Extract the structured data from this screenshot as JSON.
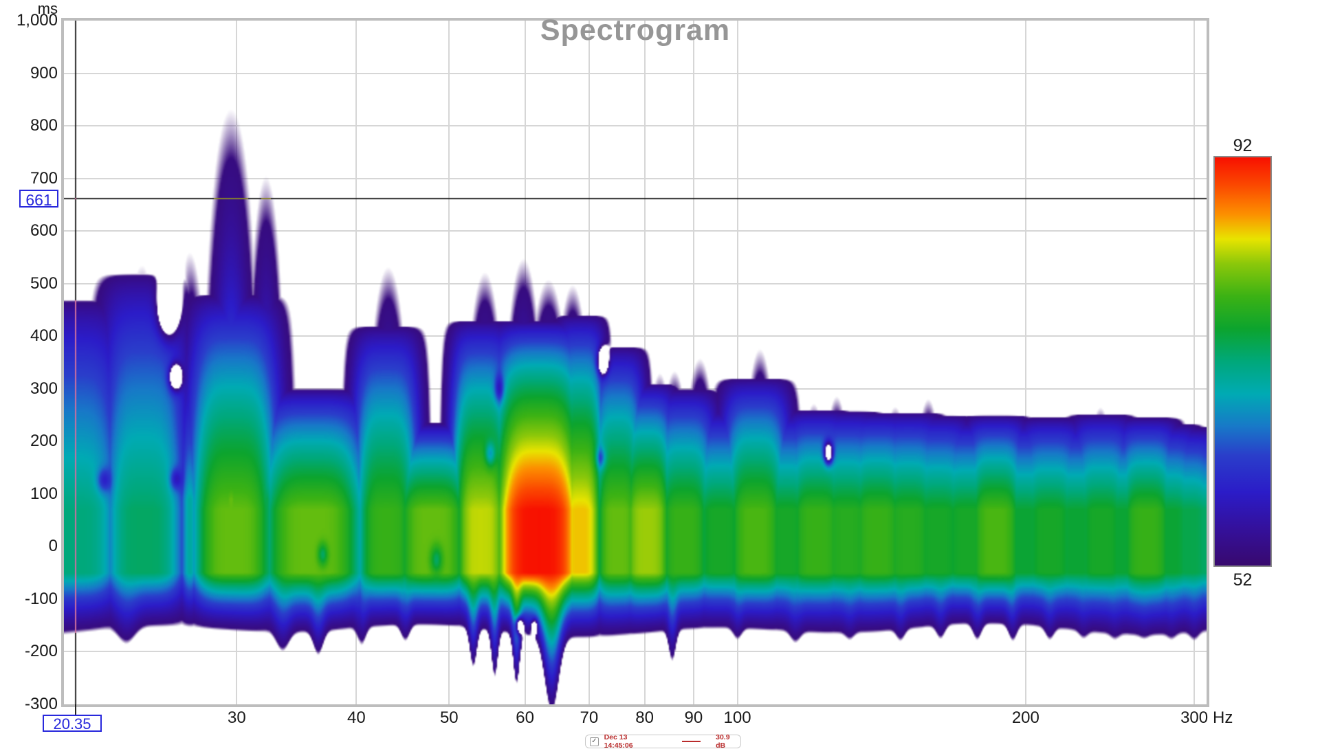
{
  "title": "Spectrogram",
  "y_axis": {
    "unit": "ms",
    "ticks": [
      {
        "label": "1,000",
        "value": 1000,
        "grid": false
      },
      {
        "label": "900",
        "value": 900,
        "grid": true
      },
      {
        "label": "800",
        "value": 800,
        "grid": true
      },
      {
        "label": "700",
        "value": 700,
        "grid": true
      },
      {
        "label": "600",
        "value": 600,
        "grid": true
      },
      {
        "label": "500",
        "value": 500,
        "grid": true
      },
      {
        "label": "400",
        "value": 400,
        "grid": true
      },
      {
        "label": "300",
        "value": 300,
        "grid": true
      },
      {
        "label": "200",
        "value": 200,
        "grid": true
      },
      {
        "label": "100",
        "value": 100,
        "grid": true
      },
      {
        "label": "0",
        "value": 0,
        "grid": true
      },
      {
        "label": "-100",
        "value": -100,
        "grid": true
      },
      {
        "label": "-200",
        "value": -200,
        "grid": true
      },
      {
        "label": "-300",
        "value": -300,
        "grid": false
      }
    ]
  },
  "x_axis": {
    "unit": "Hz",
    "ticks": [
      {
        "label": "30",
        "value": 30
      },
      {
        "label": "40",
        "value": 40
      },
      {
        "label": "50",
        "value": 50
      },
      {
        "label": "60",
        "value": 60
      },
      {
        "label": "70",
        "value": 70
      },
      {
        "label": "80",
        "value": 80
      },
      {
        "label": "90",
        "value": 90
      },
      {
        "label": "100",
        "value": 100
      },
      {
        "label": "200",
        "value": 200
      },
      {
        "label": "300",
        "value": 300
      }
    ]
  },
  "cursor": {
    "time_label": "661",
    "freq_label": "20.35",
    "time_ms": 661,
    "freq_hz": 20.35
  },
  "colorbar": {
    "max_label": "92",
    "min_label": "52"
  },
  "legend": {
    "checkbox": "✓",
    "name": "Dec 13 14:45:06",
    "level": "30.9 dB"
  },
  "colors": {
    "cursor_blue": "#2828dc",
    "legend_red": "#b92b2b"
  },
  "chart_data": {
    "type": "heatmap",
    "subtype": "spectrogram",
    "title": "Spectrogram",
    "xlabel": "Hz",
    "ylabel": "ms",
    "x_axis": {
      "scale": "log",
      "min_hz": 19.8,
      "max_hz": 309,
      "ticks": [
        30,
        40,
        50,
        60,
        70,
        80,
        90,
        100,
        200,
        300
      ]
    },
    "y_axis": {
      "min_ms": -300,
      "max_ms": 1000,
      "tick_step_ms": 100
    },
    "color_scale": {
      "min_db": 52,
      "max_db": 92,
      "stops": [
        [
          0.0,
          "#38096e"
        ],
        [
          0.09,
          "#34109b"
        ],
        [
          0.18,
          "#2b1cc8"
        ],
        [
          0.27,
          "#2a3eca"
        ],
        [
          0.34,
          "#1878c8"
        ],
        [
          0.42,
          "#00aab4"
        ],
        [
          0.5,
          "#00a87a"
        ],
        [
          0.58,
          "#0ca42e"
        ],
        [
          0.66,
          "#3cb214"
        ],
        [
          0.74,
          "#8cc80a"
        ],
        [
          0.8,
          "#e8e400"
        ],
        [
          0.86,
          "#fc9000"
        ],
        [
          0.93,
          "#fb4a00"
        ],
        [
          1.0,
          "#f81000"
        ]
      ]
    },
    "cursor": {
      "freq_hz": 20.35,
      "time_ms": 661
    },
    "measurement": {
      "name": "Dec 13 14:45:06",
      "level_db": 30.9
    },
    "envelope": {
      "sustain_from_ms": -50,
      "decay_from_ms": 70,
      "ridge_decay_from_ms": 90,
      "base_bottom_ms": -168,
      "bottom_wiggle_ms": 14
    },
    "blobs_fields": [
      "freq_hz",
      "peak_db",
      "log10_halfwidth",
      "top_ms"
    ],
    "blobs": [
      [
        20.3,
        72,
        0.05,
        470
      ],
      [
        24.0,
        73,
        0.045,
        520
      ],
      [
        29.8,
        80,
        0.048,
        480
      ],
      [
        36.0,
        80,
        0.06,
        300
      ],
      [
        43.0,
        78,
        0.035,
        420
      ],
      [
        48.0,
        80,
        0.045,
        235
      ],
      [
        54.0,
        83,
        0.032,
        430
      ],
      [
        62.0,
        92,
        0.052,
        430
      ],
      [
        68.5,
        85,
        0.026,
        440
      ],
      [
        75.0,
        80,
        0.028,
        380
      ],
      [
        80.5,
        82,
        0.03,
        310
      ],
      [
        88.0,
        78,
        0.034,
        300
      ],
      [
        96.0,
        76,
        0.034,
        260
      ],
      [
        104.5,
        79,
        0.036,
        320
      ],
      [
        112.5,
        76,
        0.032,
        255
      ],
      [
        121.0,
        78,
        0.036,
        260
      ],
      [
        130.0,
        77,
        0.036,
        258
      ],
      [
        140.0,
        78,
        0.036,
        255
      ],
      [
        151.0,
        77,
        0.036,
        255
      ],
      [
        162.0,
        76,
        0.036,
        250
      ],
      [
        174.0,
        76,
        0.036,
        240
      ],
      [
        186.0,
        79,
        0.034,
        250
      ],
      [
        199.0,
        75,
        0.034,
        238
      ],
      [
        212.0,
        76,
        0.036,
        246
      ],
      [
        226.0,
        75,
        0.034,
        234
      ],
      [
        240.0,
        76,
        0.034,
        252
      ],
      [
        254.0,
        75,
        0.034,
        234
      ],
      [
        267.5,
        78,
        0.034,
        246
      ],
      [
        282.0,
        75,
        0.034,
        234
      ],
      [
        295.0,
        74,
        0.034,
        228
      ],
      [
        306.0,
        73,
        0.028,
        222
      ]
    ],
    "ridges_fields": [
      "freq_hz",
      "peak_db",
      "top_ms",
      "log10_sigma"
    ],
    "ridges": [
      [
        20.6,
        70,
        445,
        0.014
      ],
      [
        23.9,
        71,
        535,
        0.013
      ],
      [
        26.8,
        70,
        560,
        0.012
      ],
      [
        29.6,
        80,
        832,
        0.017
      ],
      [
        32.2,
        74,
        705,
        0.012
      ],
      [
        37.2,
        72,
        300,
        0.012
      ],
      [
        43.2,
        75,
        532,
        0.013
      ],
      [
        54.5,
        79,
        522,
        0.012
      ],
      [
        59.8,
        82,
        548,
        0.012
      ],
      [
        63.5,
        83,
        508,
        0.013
      ],
      [
        67.3,
        81,
        498,
        0.011
      ],
      [
        69.9,
        77,
        446,
        0.009
      ],
      [
        72.6,
        68,
        424,
        0.01
      ],
      [
        80.2,
        73,
        302,
        0.012
      ],
      [
        83.0,
        70,
        330,
        0.008
      ],
      [
        86.0,
        71,
        334,
        0.009
      ],
      [
        91.4,
        71,
        358,
        0.01
      ],
      [
        97.4,
        69,
        272,
        0.009
      ],
      [
        105.6,
        69,
        376,
        0.01
      ],
      [
        113.4,
        67,
        262,
        0.008
      ],
      [
        120.2,
        67,
        272,
        0.008
      ],
      [
        127.0,
        68,
        286,
        0.008
      ],
      [
        134.2,
        67,
        257,
        0.008
      ],
      [
        140.0,
        65,
        232,
        0.007
      ],
      [
        146.2,
        68,
        266,
        0.008
      ],
      [
        152.5,
        65,
        235,
        0.007
      ],
      [
        158.3,
        68,
        281,
        0.008
      ],
      [
        165.5,
        65,
        232,
        0.007
      ],
      [
        173.0,
        66,
        206,
        0.008
      ],
      [
        181.5,
        66,
        228,
        0.008
      ],
      [
        190.5,
        67,
        231,
        0.008
      ],
      [
        199.5,
        65,
        222,
        0.007
      ],
      [
        210.0,
        67,
        235,
        0.008
      ],
      [
        221.5,
        66,
        222,
        0.008
      ],
      [
        231.0,
        64,
        202,
        0.007
      ],
      [
        239.5,
        67,
        265,
        0.008
      ],
      [
        248.5,
        64,
        212,
        0.007
      ],
      [
        258.0,
        64,
        206,
        0.007
      ],
      [
        270.0,
        67,
        246,
        0.008
      ],
      [
        280.5,
        65,
        226,
        0.007
      ],
      [
        290.0,
        65,
        217,
        0.008
      ],
      [
        298.5,
        64,
        200,
        0.007
      ]
    ],
    "holes_fields": [
      "freq_hz",
      "time_ms",
      "depth_db",
      "log10_sigma",
      "time_sigma_ms"
    ],
    "holes": [
      [
        25.45,
        455,
        22,
        0.01,
        50
      ],
      [
        25.9,
        322,
        26,
        0.006,
        22
      ],
      [
        72.4,
        352,
        26,
        0.005,
        22
      ],
      [
        124.5,
        178,
        24,
        0.0045,
        20
      ],
      [
        59.2,
        -150,
        20,
        0.004,
        16
      ],
      [
        61.4,
        -152,
        15,
        0.003,
        12
      ],
      [
        56.4,
        300,
        9,
        0.005,
        26
      ],
      [
        55.2,
        176,
        9,
        0.005,
        22
      ],
      [
        72.0,
        168,
        8,
        0.005,
        20
      ],
      [
        21.8,
        126,
        8,
        0.007,
        22
      ],
      [
        25.9,
        128,
        8,
        0.006,
        20
      ],
      [
        48.5,
        -25,
        7,
        0.006,
        25
      ],
      [
        36.9,
        -15,
        7,
        0.005,
        20
      ]
    ],
    "drips_fields": [
      "freq_hz",
      "bottom_ms",
      "log10_sigma"
    ],
    "drips": [
      [
        23,
        -195,
        0.012
      ],
      [
        33.5,
        -208,
        0.009
      ],
      [
        36.5,
        -215,
        0.007
      ],
      [
        40.5,
        -198,
        0.006
      ],
      [
        45,
        -188,
        0.006
      ],
      [
        53,
        -238,
        0.005
      ],
      [
        55.8,
        -258,
        0.0045
      ],
      [
        58.8,
        -270,
        0.0045
      ],
      [
        64,
        -325,
        0.01
      ],
      [
        85.5,
        -228,
        0.005
      ],
      [
        100,
        -185,
        0.006
      ],
      [
        115,
        -192,
        0.007
      ],
      [
        131,
        -186,
        0.006
      ],
      [
        148,
        -188,
        0.006
      ],
      [
        163,
        -184,
        0.006
      ],
      [
        178,
        -186,
        0.006
      ],
      [
        194,
        -188,
        0.006
      ],
      [
        212,
        -186,
        0.006
      ],
      [
        230,
        -184,
        0.006
      ],
      [
        248,
        -186,
        0.006
      ],
      [
        266,
        -184,
        0.006
      ],
      [
        284,
        -186,
        0.006
      ],
      [
        300,
        -188,
        0.006
      ]
    ]
  }
}
